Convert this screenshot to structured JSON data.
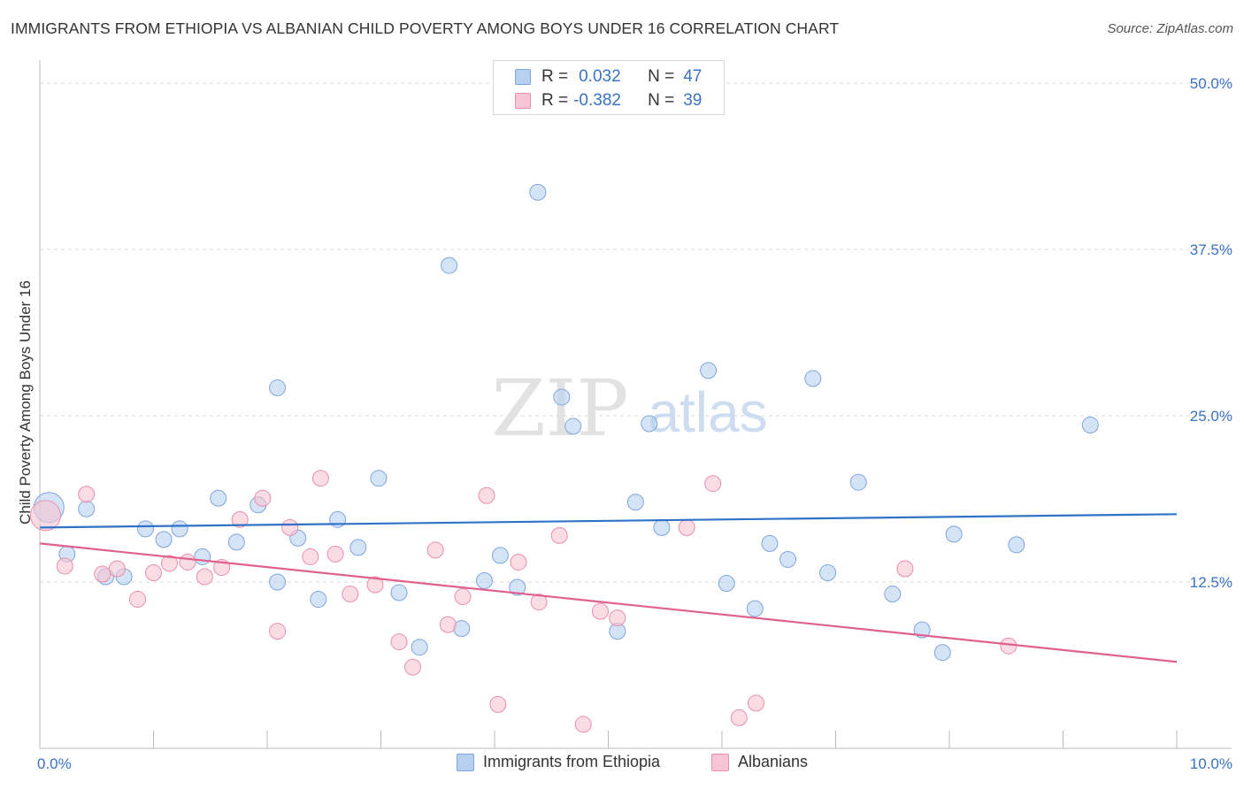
{
  "title": "IMMIGRANTS FROM ETHIOPIA VS ALBANIAN CHILD POVERTY AMONG BOYS UNDER 16 CORRELATION CHART",
  "source": "Source: ZipAtlas.com",
  "watermark": {
    "zip": "ZIP",
    "atlas": "atlas"
  },
  "colors": {
    "blue_fill": "#b8d0f0",
    "blue_stroke": "#7fa6dc",
    "blue_line": "#2f72c8",
    "pink_fill": "#f6c4d4",
    "pink_stroke": "#e98fac",
    "pink_line": "#e0608e",
    "tick_text": "#3a72c4",
    "grid": "#d9d9d9"
  },
  "legend": {
    "rows": [
      {
        "r_label": "R =",
        "r_value": "0.032",
        "n_label": "N =",
        "n_value": "47"
      },
      {
        "r_label": "R =",
        "r_value": "-0.382",
        "n_label": "N =",
        "n_value": "39"
      }
    ]
  },
  "chart_data": {
    "type": "scatter",
    "title": "IMMIGRANTS FROM ETHIOPIA VS ALBANIAN CHILD POVERTY AMONG BOYS UNDER 16 CORRELATION CHART",
    "xlabel": "",
    "ylabel": "Child Poverty Among Boys Under 16",
    "xlim": [
      0,
      10
    ],
    "ylim": [
      0,
      51
    ],
    "x_tick_labels": [
      {
        "value": 0,
        "label": "0.0%"
      },
      {
        "value": 10,
        "label": "10.0%"
      }
    ],
    "y_ticks": [
      {
        "value": 12.5,
        "label": "12.5%"
      },
      {
        "value": 25,
        "label": "25.0%"
      },
      {
        "value": 37.5,
        "label": "37.5%"
      },
      {
        "value": 50,
        "label": "50.0%"
      }
    ],
    "grid": true,
    "series": [
      {
        "name": "Immigrants from Ethiopia",
        "color": "blue",
        "trend": {
          "x": [
            0,
            10
          ],
          "y": [
            16.6,
            17.6
          ]
        },
        "points": [
          {
            "x": 0.08,
            "y": 18.1,
            "big": true
          },
          {
            "x": 0.24,
            "y": 14.6
          },
          {
            "x": 0.41,
            "y": 18.0
          },
          {
            "x": 0.58,
            "y": 12.9
          },
          {
            "x": 0.74,
            "y": 12.9
          },
          {
            "x": 0.93,
            "y": 16.5
          },
          {
            "x": 1.09,
            "y": 15.7
          },
          {
            "x": 1.23,
            "y": 16.5
          },
          {
            "x": 1.43,
            "y": 14.4
          },
          {
            "x": 1.57,
            "y": 18.8
          },
          {
            "x": 1.73,
            "y": 15.5
          },
          {
            "x": 1.92,
            "y": 18.3
          },
          {
            "x": 2.09,
            "y": 27.1
          },
          {
            "x": 2.09,
            "y": 12.5
          },
          {
            "x": 2.27,
            "y": 15.8
          },
          {
            "x": 2.45,
            "y": 11.2
          },
          {
            "x": 2.62,
            "y": 17.2
          },
          {
            "x": 2.8,
            "y": 15.1
          },
          {
            "x": 2.98,
            "y": 20.3
          },
          {
            "x": 3.16,
            "y": 11.7
          },
          {
            "x": 3.34,
            "y": 7.6
          },
          {
            "x": 3.6,
            "y": 36.3
          },
          {
            "x": 3.71,
            "y": 9.0
          },
          {
            "x": 3.91,
            "y": 12.6
          },
          {
            "x": 4.05,
            "y": 14.5
          },
          {
            "x": 4.2,
            "y": 12.1
          },
          {
            "x": 4.38,
            "y": 41.8
          },
          {
            "x": 4.59,
            "y": 26.4
          },
          {
            "x": 4.69,
            "y": 24.2
          },
          {
            "x": 5.08,
            "y": 8.8
          },
          {
            "x": 5.24,
            "y": 18.5
          },
          {
            "x": 5.36,
            "y": 24.4
          },
          {
            "x": 5.47,
            "y": 16.6
          },
          {
            "x": 5.88,
            "y": 28.4
          },
          {
            "x": 6.04,
            "y": 12.4
          },
          {
            "x": 6.29,
            "y": 10.5
          },
          {
            "x": 6.42,
            "y": 15.4
          },
          {
            "x": 6.58,
            "y": 14.2
          },
          {
            "x": 6.8,
            "y": 27.8
          },
          {
            "x": 6.93,
            "y": 13.2
          },
          {
            "x": 7.2,
            "y": 20.0
          },
          {
            "x": 7.5,
            "y": 11.6
          },
          {
            "x": 7.76,
            "y": 8.9
          },
          {
            "x": 7.94,
            "y": 7.2
          },
          {
            "x": 8.04,
            "y": 16.1
          },
          {
            "x": 8.59,
            "y": 15.3
          },
          {
            "x": 9.24,
            "y": 24.3
          }
        ]
      },
      {
        "name": "Albanians",
        "color": "pink",
        "trend": {
          "x": [
            0,
            10
          ],
          "y": [
            15.4,
            6.5
          ]
        },
        "points": [
          {
            "x": 0.05,
            "y": 17.5,
            "big": true
          },
          {
            "x": 0.22,
            "y": 13.7
          },
          {
            "x": 0.41,
            "y": 19.1
          },
          {
            "x": 0.55,
            "y": 13.1
          },
          {
            "x": 0.68,
            "y": 13.5
          },
          {
            "x": 0.86,
            "y": 11.2
          },
          {
            "x": 1.0,
            "y": 13.2
          },
          {
            "x": 1.14,
            "y": 13.9
          },
          {
            "x": 1.3,
            "y": 14.0
          },
          {
            "x": 1.45,
            "y": 12.9
          },
          {
            "x": 1.6,
            "y": 13.6
          },
          {
            "x": 1.76,
            "y": 17.2
          },
          {
            "x": 1.96,
            "y": 18.8
          },
          {
            "x": 2.09,
            "y": 8.8
          },
          {
            "x": 2.2,
            "y": 16.6
          },
          {
            "x": 2.38,
            "y": 14.4
          },
          {
            "x": 2.47,
            "y": 20.3
          },
          {
            "x": 2.6,
            "y": 14.6
          },
          {
            "x": 2.73,
            "y": 11.6
          },
          {
            "x": 2.95,
            "y": 12.3
          },
          {
            "x": 3.16,
            "y": 8.0
          },
          {
            "x": 3.28,
            "y": 6.1
          },
          {
            "x": 3.48,
            "y": 14.9
          },
          {
            "x": 3.59,
            "y": 9.3
          },
          {
            "x": 3.72,
            "y": 11.4
          },
          {
            "x": 3.93,
            "y": 19.0
          },
          {
            "x": 4.03,
            "y": 3.3
          },
          {
            "x": 4.21,
            "y": 14.0
          },
          {
            "x": 4.39,
            "y": 11.0
          },
          {
            "x": 4.57,
            "y": 16.0
          },
          {
            "x": 4.78,
            "y": 1.8
          },
          {
            "x": 4.93,
            "y": 10.3
          },
          {
            "x": 5.08,
            "y": 9.8
          },
          {
            "x": 5.69,
            "y": 16.6
          },
          {
            "x": 5.92,
            "y": 19.9
          },
          {
            "x": 6.15,
            "y": 2.3
          },
          {
            "x": 6.3,
            "y": 3.4
          },
          {
            "x": 7.61,
            "y": 13.5
          },
          {
            "x": 8.52,
            "y": 7.7
          }
        ]
      }
    ]
  },
  "bottom_legend": [
    {
      "label": "Immigrants from Ethiopia"
    },
    {
      "label": "Albanians"
    }
  ]
}
